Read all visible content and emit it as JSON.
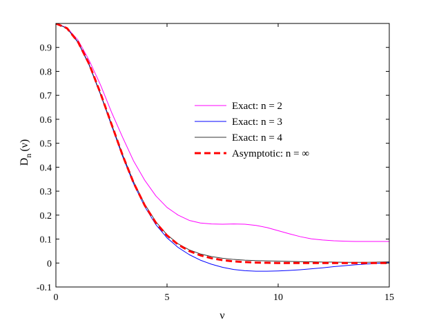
{
  "chart_data": {
    "type": "line",
    "title": "",
    "xlabel": "ν",
    "ylabel": {
      "main": "D",
      "sub": "n",
      "rest": "(ν)"
    },
    "xlim": [
      0,
      15
    ],
    "ylim": [
      -0.1,
      1.0
    ],
    "x_ticks": [
      0,
      5,
      10,
      15
    ],
    "y_ticks": [
      -0.1,
      0,
      0.1,
      0.2,
      0.3,
      0.4,
      0.5,
      0.6,
      0.7,
      0.8,
      0.9
    ],
    "grid": false,
    "legend_position": "center-right",
    "series": [
      {
        "name": "Exact: n = 2",
        "color": "#ff00ff",
        "style": "solid",
        "x": [
          0,
          0.5,
          1,
          1.5,
          2,
          2.5,
          3,
          3.5,
          4,
          4.5,
          5,
          5.5,
          6,
          6.5,
          7,
          7.5,
          8,
          8.5,
          9,
          9.5,
          10,
          10.5,
          11,
          11.5,
          12,
          12.5,
          13,
          13.5,
          14,
          14.5,
          15
        ],
        "values": [
          1.0,
          0.982,
          0.93,
          0.845,
          0.745,
          0.63,
          0.525,
          0.425,
          0.345,
          0.28,
          0.232,
          0.2,
          0.178,
          0.167,
          0.163,
          0.162,
          0.163,
          0.162,
          0.157,
          0.148,
          0.135,
          0.122,
          0.11,
          0.101,
          0.096,
          0.093,
          0.091,
          0.09,
          0.09,
          0.09,
          0.09
        ]
      },
      {
        "name": "Exact: n = 3",
        "color": "#0000ff",
        "style": "solid",
        "x": [
          0,
          0.5,
          1,
          1.5,
          2,
          2.5,
          3,
          3.5,
          4,
          4.5,
          5,
          5.5,
          6,
          6.5,
          7,
          7.5,
          8,
          8.5,
          9,
          9.5,
          10,
          10.5,
          11,
          11.5,
          12,
          12.5,
          13,
          13.5,
          14,
          14.5,
          15
        ],
        "values": [
          1.0,
          0.98,
          0.92,
          0.825,
          0.705,
          0.575,
          0.445,
          0.33,
          0.235,
          0.16,
          0.105,
          0.065,
          0.035,
          0.012,
          -0.005,
          -0.018,
          -0.027,
          -0.032,
          -0.034,
          -0.034,
          -0.033,
          -0.031,
          -0.028,
          -0.024,
          -0.02,
          -0.015,
          -0.011,
          -0.007,
          -0.004,
          -0.001,
          0.002
        ]
      },
      {
        "name": "Exact: n = 4",
        "color": "#333333",
        "style": "solid",
        "x": [
          0,
          0.5,
          1,
          1.5,
          2,
          2.5,
          3,
          3.5,
          4,
          4.5,
          5,
          5.5,
          6,
          6.5,
          7,
          7.5,
          8,
          8.5,
          9,
          9.5,
          10,
          10.5,
          11,
          11.5,
          12,
          12.5,
          13,
          13.5,
          14,
          14.5,
          15
        ],
        "values": [
          1.0,
          0.98,
          0.922,
          0.828,
          0.708,
          0.58,
          0.452,
          0.338,
          0.245,
          0.172,
          0.118,
          0.08,
          0.055,
          0.038,
          0.027,
          0.02,
          0.015,
          0.012,
          0.01,
          0.009,
          0.008,
          0.007,
          0.006,
          0.005,
          0.004,
          0.004,
          0.003,
          0.003,
          0.003,
          0.004,
          0.005
        ]
      },
      {
        "name": "Asymptotic: n = ∞",
        "color": "#ff0000",
        "style": "dashed",
        "x": [
          0,
          0.5,
          1,
          1.5,
          2,
          2.5,
          3,
          3.5,
          4,
          4.5,
          5,
          5.5,
          6,
          6.5,
          7,
          7.5,
          8,
          8.5,
          9,
          9.5,
          10,
          10.5,
          11,
          11.5,
          12,
          12.5,
          13,
          13.5,
          14,
          14.5,
          15
        ],
        "values": [
          1.0,
          0.98,
          0.922,
          0.83,
          0.71,
          0.58,
          0.45,
          0.334,
          0.24,
          0.168,
          0.115,
          0.077,
          0.05,
          0.032,
          0.02,
          0.012,
          0.007,
          0.004,
          0.002,
          0.001,
          0.0,
          0.0,
          0.0,
          0.0,
          0.0,
          0.0,
          0.0,
          0.0,
          0.0,
          0.0,
          0.0
        ]
      }
    ]
  }
}
